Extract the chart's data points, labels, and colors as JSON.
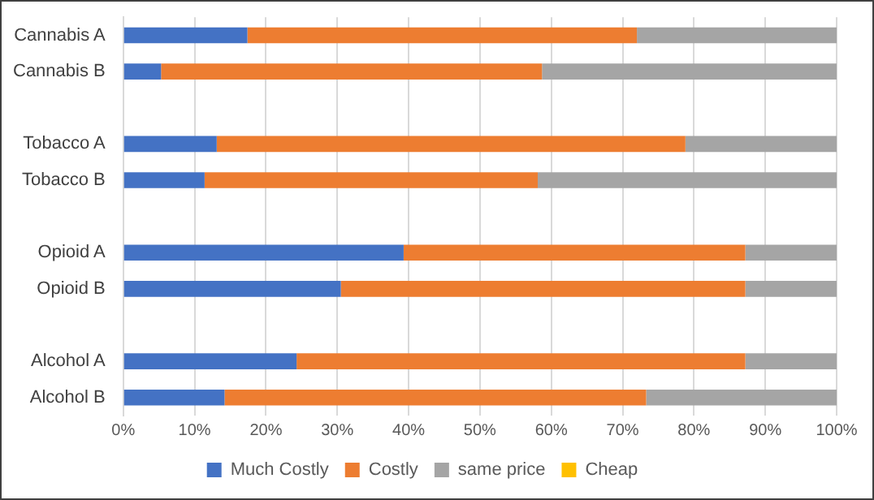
{
  "chart_data": {
    "type": "bar",
    "orientation": "horizontal",
    "stacked": true,
    "categories": [
      "Cannabis A",
      "Cannabis B",
      null,
      "Tobacco A",
      "Tobacco B",
      null,
      "Opioid A",
      "Opioid B",
      null,
      "Alcohol A",
      "Alcohol B"
    ],
    "series": [
      {
        "name": "Much Costly",
        "color": "#4472c4",
        "values": [
          17.4,
          5.3,
          null,
          13.1,
          11.4,
          null,
          39.3,
          30.5,
          null,
          24.3,
          14.2
        ]
      },
      {
        "name": "Costly",
        "color": "#ed7d31",
        "values": [
          54.6,
          53.4,
          null,
          65.7,
          46.7,
          null,
          47.9,
          56.7,
          null,
          62.9,
          59.1
        ]
      },
      {
        "name": "same price",
        "color": "#a5a5a5",
        "values": [
          28,
          41.3,
          null,
          21.2,
          41.9,
          null,
          12.8,
          12.8,
          null,
          12.8,
          26.7
        ]
      },
      {
        "name": "Cheap",
        "color": "#ffc000",
        "values": [
          0,
          0,
          null,
          0,
          0,
          null,
          0,
          0,
          null,
          0,
          0
        ]
      }
    ],
    "xlim": [
      0,
      100
    ],
    "xticks": [
      {
        "value": 0,
        "label": "0%"
      },
      {
        "value": 10,
        "label": "10%"
      },
      {
        "value": 20,
        "label": "20%"
      },
      {
        "value": 30,
        "label": "30%"
      },
      {
        "value": 40,
        "label": "40%"
      },
      {
        "value": 50,
        "label": "50%"
      },
      {
        "value": 60,
        "label": "60%"
      },
      {
        "value": 70,
        "label": "70%"
      },
      {
        "value": 80,
        "label": "80%"
      },
      {
        "value": 90,
        "label": "90%"
      },
      {
        "value": 100,
        "label": "100%"
      }
    ],
    "grid": "x",
    "legend": "bottom"
  }
}
